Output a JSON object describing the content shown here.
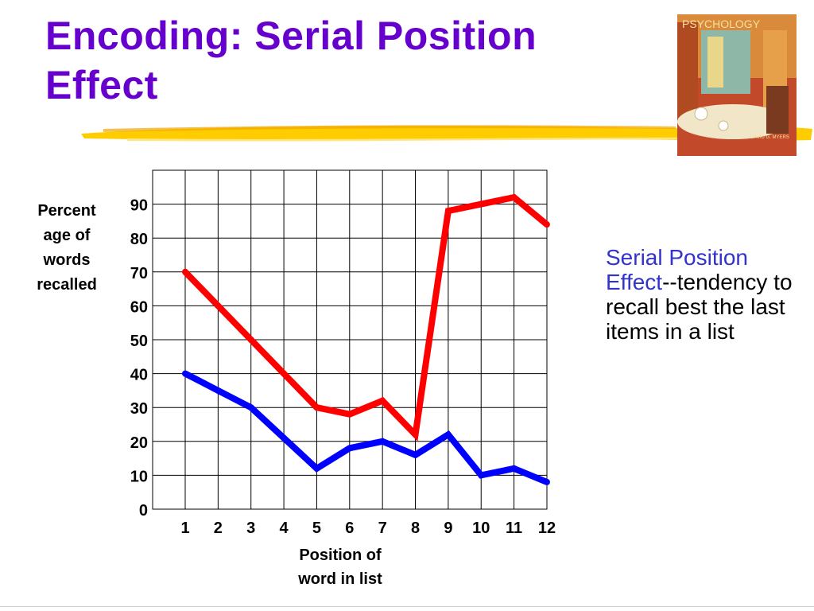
{
  "slide": {
    "title_line1": "Encoding: Serial Position",
    "title_line2": "Effect",
    "title_color": "#6600cc",
    "highlight_color": "#ffcc00",
    "book_cover_label": "PSYCHOLOGY",
    "book_cover_author": "DAVID G. MYERS"
  },
  "definition": {
    "term_line1": "Serial Position",
    "term_line2": "Effect",
    "rest": "--tendency to recall best the last items in a list",
    "term_color": "#3333cc"
  },
  "chart_data": {
    "type": "line",
    "x": [
      1,
      2,
      3,
      4,
      5,
      6,
      7,
      8,
      9,
      10,
      11,
      12
    ],
    "categories": [
      "1",
      "2",
      "3",
      "4",
      "5",
      "6",
      "7",
      "8",
      "9",
      "10",
      "11",
      "12"
    ],
    "series": [
      {
        "values": [
          70,
          60,
          50,
          40,
          30,
          28,
          32,
          22,
          88,
          90,
          92,
          84
        ],
        "color": "#ff0000"
      },
      {
        "values": [
          40,
          35,
          30,
          21,
          12,
          18,
          20,
          16,
          22,
          10,
          12,
          8
        ],
        "color": "#0000ff"
      }
    ],
    "yticks": [
      0,
      10,
      20,
      30,
      40,
      50,
      60,
      70,
      80,
      90
    ],
    "ylim": [
      0,
      100
    ],
    "xlabel": "Position of word in list",
    "ylabel": "Percent age of words recalled",
    "grid": true
  }
}
